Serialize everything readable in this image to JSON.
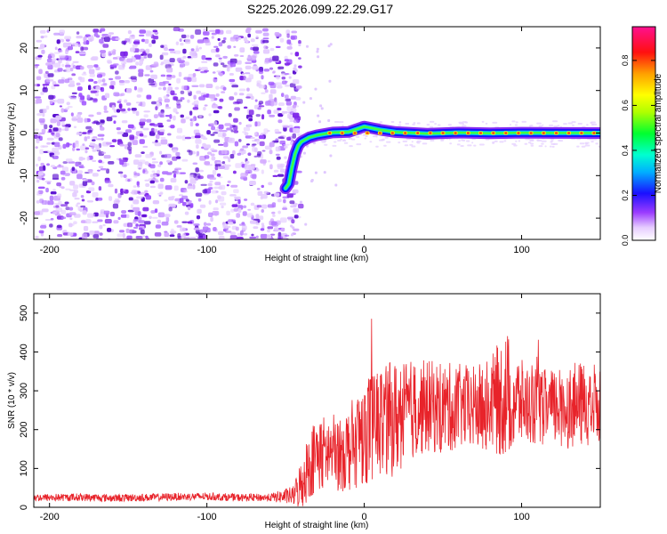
{
  "title": "S225.2026.099.22.29.G17",
  "colors": {
    "snr_line": "#e8232a",
    "axis": "#000000",
    "background": "#ffffff"
  },
  "chart_data": [
    {
      "type": "heatmap",
      "name": "spectrogram",
      "xlabel": "Height of straight line (km)",
      "ylabel": "Frequency (Hz)",
      "xlim": [
        -210,
        150
      ],
      "ylim": [
        -25,
        25
      ],
      "x_ticks": [
        -200,
        -100,
        0,
        100
      ],
      "y_ticks": [
        -20,
        -10,
        0,
        10,
        20
      ],
      "noise_region_x": [
        -210,
        -50
      ],
      "signal_ridge": [
        {
          "x": -50,
          "y": -13
        },
        {
          "x": -48,
          "y": -12
        },
        {
          "x": -46,
          "y": -8
        },
        {
          "x": -44,
          "y": -5
        },
        {
          "x": -42,
          "y": -3
        },
        {
          "x": -40,
          "y": -2
        },
        {
          "x": -35,
          "y": -1
        },
        {
          "x": -30,
          "y": -0.5
        },
        {
          "x": -20,
          "y": 0
        },
        {
          "x": -10,
          "y": 0.3
        },
        {
          "x": 0,
          "y": 1.5
        },
        {
          "x": 10,
          "y": 0.8
        },
        {
          "x": 20,
          "y": 0.2
        },
        {
          "x": 40,
          "y": 0
        },
        {
          "x": 60,
          "y": 0
        },
        {
          "x": 80,
          "y": 0
        },
        {
          "x": 100,
          "y": 0
        },
        {
          "x": 120,
          "y": 0
        },
        {
          "x": 150,
          "y": 0
        }
      ],
      "colorbar": {
        "label": "Normalized spectral amplitude",
        "range": [
          0.0,
          0.95
        ],
        "ticks": [
          0.0,
          0.2,
          0.4,
          0.6,
          0.8
        ],
        "tick_labels": [
          "0.0",
          "0.2",
          "0.4",
          "0.6",
          "0.8"
        ]
      }
    },
    {
      "type": "line",
      "name": "snr",
      "xlabel": "Height of straight line (km)",
      "ylabel": "SNR (10 * v/v)",
      "xlim": [
        -210,
        150
      ],
      "ylim": [
        0,
        550
      ],
      "x_ticks": [
        -200,
        -100,
        0,
        100
      ],
      "y_ticks": [
        0,
        100,
        200,
        300,
        400,
        500
      ],
      "series": [
        {
          "name": "SNR",
          "x": [
            -210,
            -200,
            -180,
            -160,
            -140,
            -120,
            -100,
            -80,
            -60,
            -45,
            -40,
            -35,
            -30,
            -20,
            -10,
            0,
            10,
            20,
            30,
            40,
            50,
            60,
            70,
            80,
            90,
            100,
            110,
            120,
            130,
            140,
            150
          ],
          "values": [
            25,
            25,
            26,
            24,
            25,
            27,
            28,
            25,
            25,
            30,
            60,
            110,
            140,
            140,
            150,
            200,
            220,
            230,
            250,
            260,
            255,
            260,
            255,
            265,
            290,
            270,
            260,
            255,
            260,
            265,
            270
          ],
          "spread": [
            10,
            10,
            10,
            10,
            10,
            10,
            10,
            10,
            10,
            25,
            70,
            90,
            100,
            100,
            110,
            140,
            150,
            150,
            130,
            120,
            120,
            110,
            110,
            120,
            170,
            110,
            100,
            100,
            110,
            110,
            110
          ]
        }
      ]
    }
  ]
}
